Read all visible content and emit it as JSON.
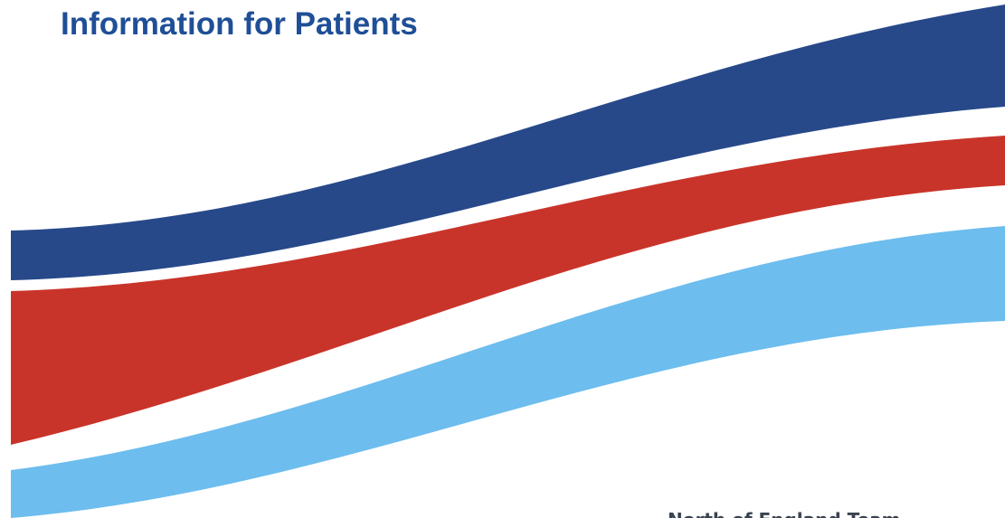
{
  "header": {
    "title": "Information for Patients"
  },
  "footer": {
    "team": "North of England Team"
  }
}
